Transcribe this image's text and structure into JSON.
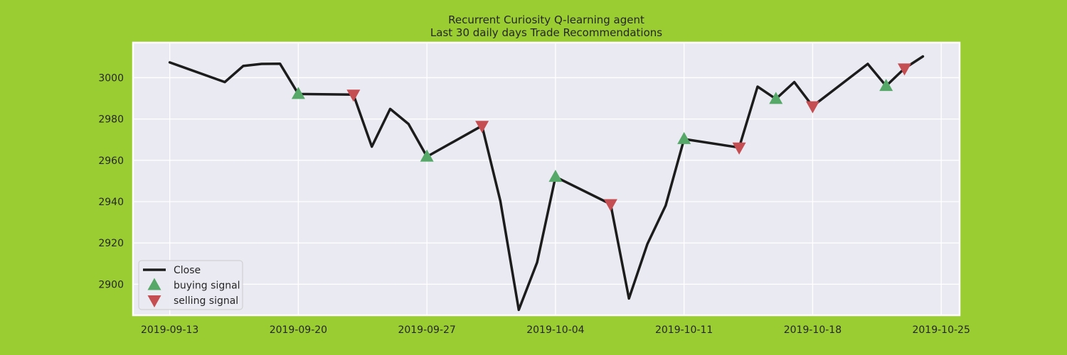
{
  "figure_background": "#9acd32",
  "plot_background": "#eaeaf2",
  "chart_data": {
    "type": "line",
    "title": "Recurrent Curiosity Q-learning agent",
    "subtitle": "Last 30 daily days Trade Recommendations",
    "xlabel": "",
    "ylabel": "",
    "grid": true,
    "legend_position": "lower-left",
    "xlim": [
      "2019-09-11",
      "2019-10-26"
    ],
    "ylim": [
      2885,
      3017
    ],
    "x_ticks": [
      "2019-09-13",
      "2019-09-20",
      "2019-09-27",
      "2019-10-04",
      "2019-10-11",
      "2019-10-18",
      "2019-10-25"
    ],
    "y_ticks": [
      2900,
      2920,
      2940,
      2960,
      2980,
      3000
    ],
    "series": [
      {
        "name": "Close",
        "kind": "line",
        "color": "#1c1c1c",
        "points": [
          {
            "x": "2019-09-13",
            "y": 3007.4
          },
          {
            "x": "2019-09-16",
            "y": 2997.9
          },
          {
            "x": "2019-09-17",
            "y": 3005.7
          },
          {
            "x": "2019-09-18",
            "y": 3006.7
          },
          {
            "x": "2019-09-19",
            "y": 3006.8
          },
          {
            "x": "2019-09-20",
            "y": 2992.1
          },
          {
            "x": "2019-09-23",
            "y": 2991.8
          },
          {
            "x": "2019-09-24",
            "y": 2966.6
          },
          {
            "x": "2019-09-25",
            "y": 2984.9
          },
          {
            "x": "2019-09-26",
            "y": 2977.6
          },
          {
            "x": "2019-09-27",
            "y": 2961.8
          },
          {
            "x": "2019-09-30",
            "y": 2976.7
          },
          {
            "x": "2019-10-01",
            "y": 2940.3
          },
          {
            "x": "2019-10-02",
            "y": 2887.6
          },
          {
            "x": "2019-10-03",
            "y": 2910.6
          },
          {
            "x": "2019-10-04",
            "y": 2952.0
          },
          {
            "x": "2019-10-07",
            "y": 2938.8
          },
          {
            "x": "2019-10-08",
            "y": 2893.1
          },
          {
            "x": "2019-10-09",
            "y": 2919.4
          },
          {
            "x": "2019-10-10",
            "y": 2938.1
          },
          {
            "x": "2019-10-11",
            "y": 2970.3
          },
          {
            "x": "2019-10-14",
            "y": 2966.2
          },
          {
            "x": "2019-10-15",
            "y": 2995.7
          },
          {
            "x": "2019-10-16",
            "y": 2989.7
          },
          {
            "x": "2019-10-17",
            "y": 2997.9
          },
          {
            "x": "2019-10-18",
            "y": 2986.2
          },
          {
            "x": "2019-10-21",
            "y": 3006.7
          },
          {
            "x": "2019-10-22",
            "y": 2995.99
          },
          {
            "x": "2019-10-23",
            "y": 3004.5
          },
          {
            "x": "2019-10-24",
            "y": 3010.3
          }
        ]
      },
      {
        "name": "buying signal",
        "kind": "marker",
        "marker": "triangle-up",
        "color": "#55a868",
        "points": [
          {
            "x": "2019-09-20",
            "y": 2992.1
          },
          {
            "x": "2019-09-27",
            "y": 2961.8
          },
          {
            "x": "2019-10-04",
            "y": 2952.0
          },
          {
            "x": "2019-10-11",
            "y": 2970.3
          },
          {
            "x": "2019-10-16",
            "y": 2989.7
          },
          {
            "x": "2019-10-22",
            "y": 2995.99
          }
        ]
      },
      {
        "name": "selling signal",
        "kind": "marker",
        "marker": "triangle-down",
        "color": "#c44e52",
        "points": [
          {
            "x": "2019-09-23",
            "y": 2991.8
          },
          {
            "x": "2019-09-30",
            "y": 2976.7
          },
          {
            "x": "2019-10-07",
            "y": 2938.8
          },
          {
            "x": "2019-10-14",
            "y": 2966.2
          },
          {
            "x": "2019-10-18",
            "y": 2986.2
          },
          {
            "x": "2019-10-23",
            "y": 3004.5
          }
        ]
      }
    ]
  }
}
